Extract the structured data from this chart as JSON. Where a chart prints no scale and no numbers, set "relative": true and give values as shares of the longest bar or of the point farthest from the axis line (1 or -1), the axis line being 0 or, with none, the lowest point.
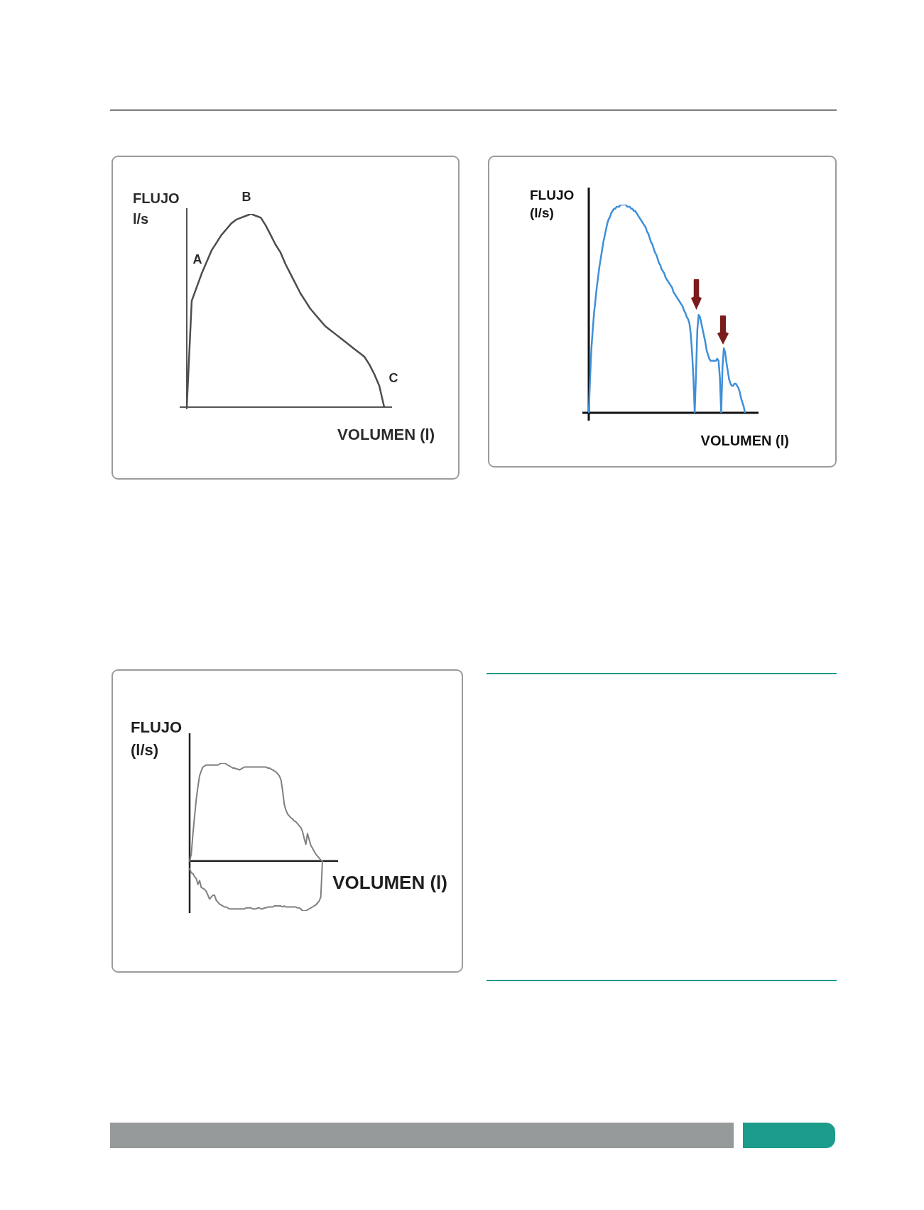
{
  "chart_data": [
    {
      "type": "line",
      "relative": true,
      "xlabel": "VOLUMEN (l)",
      "ylabel": "FLUJO l/s",
      "categories": [
        null,
        null,
        null,
        null,
        null,
        null,
        null,
        null,
        null,
        null,
        null,
        null,
        null,
        null,
        null,
        null,
        null,
        null,
        null,
        null,
        null,
        null,
        null,
        null,
        null,
        null,
        null,
        null,
        null,
        null,
        null,
        null,
        null,
        null,
        null,
        null,
        null,
        null,
        null,
        null,
        null
      ],
      "series": [
        {
          "color": "#4d4d4d",
          "values": [
            0,
            0.55,
            0.62,
            0.69,
            0.75,
            0.81,
            0.85,
            0.89,
            0.92,
            0.95,
            0.97,
            0.98,
            0.99,
            1,
            0.99,
            0.98,
            0.94,
            0.89,
            0.84,
            0.8,
            0.74,
            0.69,
            0.64,
            0.59,
            0.55,
            0.51,
            0.48,
            0.45,
            0.42,
            0.4,
            0.38,
            0.36,
            0.34,
            0.32,
            0.3,
            0.28,
            0.26,
            0.22,
            0.17,
            0.11,
            0
          ]
        }
      ],
      "annotations": [
        "A",
        "B",
        "C"
      ]
    },
    {
      "type": "line",
      "relative": true,
      "xlabel": "VOLUMEN (l)",
      "ylabel": "FLUJO (l/s)",
      "categories": [
        null,
        null,
        null,
        null,
        null,
        null,
        null,
        null,
        null,
        null,
        null,
        null,
        null,
        null,
        null,
        null,
        null,
        null,
        null,
        null,
        null,
        null,
        null,
        null,
        null,
        null,
        null,
        null,
        null,
        null,
        null,
        null,
        null,
        null,
        null,
        null,
        null,
        null,
        null,
        null,
        null,
        null,
        null,
        null,
        null,
        null,
        null,
        null,
        null,
        null,
        null,
        null,
        null,
        null,
        null,
        null,
        null,
        null,
        null,
        null,
        null,
        null,
        null,
        null,
        null,
        null,
        null,
        null,
        null,
        null,
        null,
        null,
        null,
        null,
        null,
        null,
        null,
        null,
        null,
        null,
        null,
        null,
        null,
        null,
        null,
        null,
        null,
        null,
        null,
        null,
        null,
        null,
        null,
        null,
        null,
        null,
        null,
        null,
        null,
        null,
        null,
        null,
        null,
        null,
        null,
        null,
        null,
        null,
        null,
        null,
        null,
        null,
        null,
        null,
        null,
        null,
        null,
        null,
        null
      ],
      "series": [
        {
          "color": "#3f8fd8",
          "values": [
            0,
            0.17,
            0.31,
            0.4,
            0.48,
            0.54,
            0.6,
            0.65,
            0.7,
            0.74,
            0.78,
            0.82,
            0.85,
            0.88,
            0.91,
            0.93,
            0.94,
            0.96,
            0.97,
            0.98,
            0.98,
            0.99,
            0.99,
            0.99,
            1,
            1,
            1,
            1,
            1,
            0.99,
            0.99,
            0.99,
            0.98,
            0.98,
            0.97,
            0.97,
            0.96,
            0.95,
            0.94,
            0.93,
            0.92,
            0.91,
            0.9,
            0.89,
            0.87,
            0.86,
            0.84,
            0.82,
            0.81,
            0.79,
            0.77,
            0.76,
            0.74,
            0.72,
            0.71,
            0.69,
            0.68,
            0.67,
            0.65,
            0.64,
            0.63,
            0.62,
            0.61,
            0.6,
            0.58,
            0.57,
            0.56,
            0.55,
            0.54,
            0.53,
            0.52,
            0.51,
            0.49,
            0.48,
            0.46,
            0.45,
            0.43,
            0.38,
            0.29,
            0.17,
            0,
            0.19,
            0.4,
            0.47,
            0.46,
            0.43,
            0.4,
            0.37,
            0.34,
            0.3,
            0.28,
            0.26,
            0.25,
            0.25,
            0.25,
            0.25,
            0.25,
            0.26,
            0.25,
            0.17,
            0,
            0.22,
            0.31,
            0.29,
            0.24,
            0.2,
            0.16,
            0.14,
            0.13,
            0.13,
            0.14,
            0.14,
            0.13,
            0.12,
            0.1,
            0.07,
            0.05,
            0.03,
            0
          ]
        }
      ]
    },
    {
      "type": "line",
      "relative": true,
      "xlabel": "VOLUMEN (l)",
      "ylabel": "FLUJO (l/s)",
      "categories": [
        null,
        null,
        null,
        null,
        null,
        null,
        null,
        null,
        null,
        null,
        null,
        null,
        null,
        null,
        null,
        null,
        null,
        null,
        null,
        null,
        null,
        null,
        null,
        null,
        null,
        null,
        null,
        null,
        null,
        null,
        null,
        null,
        null,
        null,
        null,
        null,
        null,
        null,
        null,
        null,
        null,
        null,
        null,
        null,
        null,
        null,
        null,
        null,
        null,
        null,
        null,
        null,
        null,
        null,
        null,
        null,
        null,
        null,
        null,
        null,
        null,
        null,
        null,
        null,
        null,
        null,
        null,
        null,
        null,
        null,
        null,
        null,
        null,
        null,
        null,
        null,
        null,
        null,
        null,
        null,
        null
      ],
      "series": [
        {
          "color": "#808080",
          "values": [
            0,
            0.07,
            0.28,
            0.46,
            0.63,
            0.76,
            0.87,
            0.92,
            0.96,
            0.97,
            0.98,
            0.98,
            0.98,
            0.98,
            0.98,
            0.98,
            0.98,
            0.98,
            0.99,
            1,
            1,
            1,
            0.99,
            0.98,
            0.97,
            0.96,
            0.95,
            0.95,
            0.94,
            0.94,
            0.93,
            0.94,
            0.95,
            0.96,
            0.96,
            0.96,
            0.96,
            0.96,
            0.96,
            0.96,
            0.96,
            0.96,
            0.96,
            0.96,
            0.96,
            0.96,
            0.96,
            0.95,
            0.95,
            0.94,
            0.93,
            0.92,
            0.91,
            0.89,
            0.87,
            0.83,
            0.72,
            0.58,
            0.52,
            0.48,
            0.46,
            0.44,
            0.43,
            0.41,
            0.4,
            0.38,
            0.36,
            0.34,
            0.3,
            0.23,
            0.17,
            0.28,
            0.22,
            0.16,
            0.13,
            0.1,
            0.07,
            0.05,
            0.03,
            0.01,
            0
          ]
        },
        {
          "color": "#808080",
          "values": [
            -0.08,
            -0.12,
            -0.13,
            -0.16,
            -0.18,
            -0.24,
            -0.2,
            -0.27,
            -0.28,
            -0.29,
            -0.31,
            -0.35,
            -0.39,
            -0.37,
            -0.35,
            -0.35,
            -0.4,
            -0.42,
            -0.44,
            -0.45,
            -0.46,
            -0.47,
            -0.47,
            -0.48,
            -0.49,
            -0.49,
            -0.49,
            -0.49,
            -0.49,
            -0.49,
            -0.49,
            -0.49,
            -0.49,
            -0.49,
            -0.48,
            -0.48,
            -0.48,
            -0.48,
            -0.49,
            -0.49,
            -0.49,
            -0.48,
            -0.48,
            -0.49,
            -0.49,
            -0.48,
            -0.48,
            -0.47,
            -0.47,
            -0.47,
            -0.47,
            -0.46,
            -0.46,
            -0.46,
            -0.46,
            -0.46,
            -0.47,
            -0.46,
            -0.47,
            -0.47,
            -0.47,
            -0.47,
            -0.47,
            -0.47,
            -0.47,
            -0.48,
            -0.48,
            -0.49,
            -0.51,
            -0.51,
            -0.51,
            -0.5,
            -0.49,
            -0.48,
            -0.47,
            -0.46,
            -0.45,
            -0.43,
            -0.41,
            -0.37,
            0
          ]
        }
      ]
    }
  ]
}
